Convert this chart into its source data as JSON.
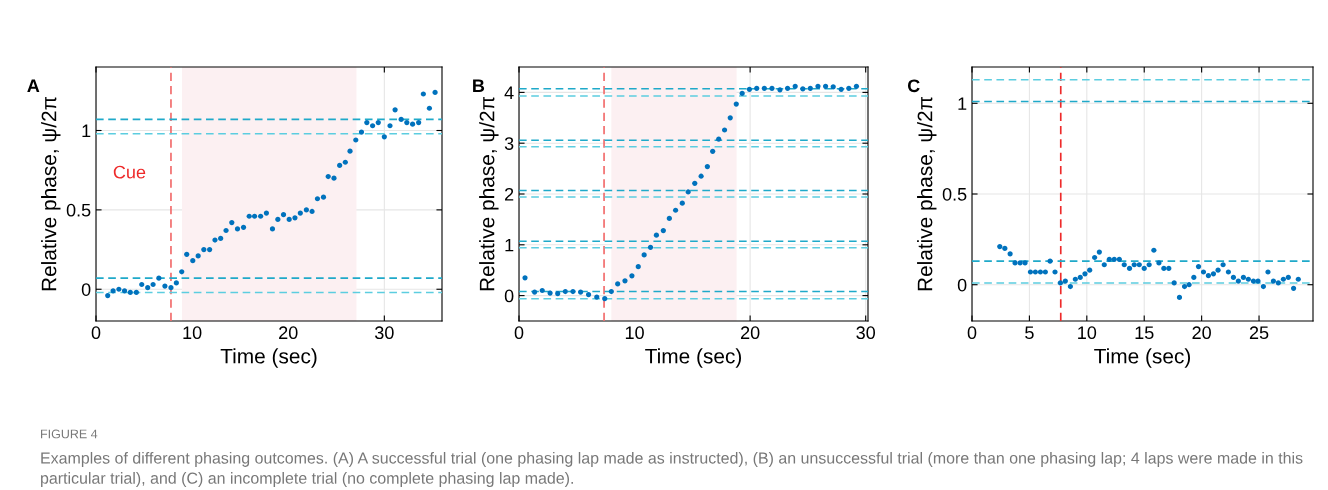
{
  "chart_data": [
    {
      "type": "scatter",
      "title": "A",
      "xlabel": "Time (sec)",
      "ylabel": "Relative phase, ψ/2π",
      "xlim": [
        0,
        36
      ],
      "xticks": [
        0,
        10,
        20,
        30
      ],
      "ylim": [
        -0.2,
        1.4
      ],
      "yticks": [
        0,
        0.5,
        1
      ],
      "grid": true,
      "marker": "circle",
      "annotations": [
        "FIGURE 4",
        "Examples of different phasing outcomes. (A) A successful trial (one phasing lap made as instructed), (B) an unsuccessful trial (more than one phasing lap; 4 laps were made in this particular trial), and (C) an incomplete trial (no complete phasing lap made)."
      ],
      "series": [
        {
          "color": "#0072bd",
          "x": [
            1.22,
            1.78,
            2.38,
            2.97,
            3.57,
            4.2,
            4.76,
            5.38,
            5.94,
            6.54,
            7.17,
            7.8,
            8.36,
            8.92,
            9.44,
            10.07,
            10.63,
            11.22,
            11.82,
            12.38,
            12.97,
            13.53,
            14.13,
            14.72,
            15.35,
            15.94,
            16.5,
            17.13,
            17.73,
            18.36,
            18.92,
            19.51,
            20.1,
            20.7,
            21.26,
            21.89,
            22.48,
            23.04,
            23.67,
            24.16,
            24.76,
            25.35,
            25.94,
            26.43,
            27.03,
            27.62,
            28.18,
            28.78,
            29.37,
            30.0,
            30.59,
            31.12,
            31.75,
            32.34,
            32.94,
            33.57,
            34.06,
            34.69,
            35.28
          ],
          "values": [
            -0.04,
            -0.01,
            0.0,
            -0.01,
            -0.02,
            -0.02,
            0.03,
            0.01,
            0.03,
            0.07,
            0.02,
            0.01,
            0.04,
            0.11,
            0.22,
            0.18,
            0.21,
            0.25,
            0.25,
            0.31,
            0.32,
            0.37,
            0.42,
            0.38,
            0.39,
            0.46,
            0.46,
            0.46,
            0.48,
            0.38,
            0.44,
            0.47,
            0.44,
            0.45,
            0.48,
            0.5,
            0.49,
            0.57,
            0.58,
            0.71,
            0.7,
            0.78,
            0.8,
            0.87,
            0.94,
            0.99,
            1.05,
            1.03,
            1.05,
            0.96,
            1.03,
            1.13,
            1.07,
            1.05,
            1.04,
            1.05,
            1.23,
            1.14,
            1.24
          ]
        }
      ],
      "ref_lines": [
        {
          "axis": "x",
          "value": 7.8,
          "label": "Cue",
          "color": "#f26b6b",
          "line_style": "dashed"
        },
        {
          "axis": "y",
          "value": 1.07,
          "color": "#1fa9c9",
          "line_style": "dashed"
        },
        {
          "axis": "y",
          "value": 0.98,
          "color": "#5ccde0",
          "line_style": "dashed"
        },
        {
          "axis": "y",
          "value": 0.07,
          "color": "#1fa9c9",
          "line_style": "dashed"
        },
        {
          "axis": "y",
          "value": -0.02,
          "color": "#5ccde0",
          "line_style": "dashed"
        }
      ],
      "bands": [
        {
          "axis": "x",
          "from": 8.95,
          "to": 27.1,
          "color": "#fcf0f2"
        }
      ]
    },
    {
      "type": "scatter",
      "title": "B",
      "xlabel": "Time (sec)",
      "ylabel": "Relative phase, ψ/2π",
      "xlim": [
        0,
        30.2
      ],
      "xticks": [
        0,
        10,
        20,
        30
      ],
      "ylim": [
        -0.5,
        4.5
      ],
      "yticks": [
        0,
        1,
        2,
        3,
        4
      ],
      "grid": true,
      "marker": "circle",
      "series": [
        {
          "color": "#0072bd",
          "x": [
            0.52,
            1.35,
            2.01,
            2.69,
            3.35,
            4.01,
            4.67,
            5.33,
            6.02,
            6.73,
            7.42,
            7.99,
            8.54,
            9.17,
            9.77,
            10.32,
            10.83,
            11.38,
            11.89,
            12.49,
            13.01,
            13.55,
            14.13,
            14.64,
            15.21,
            15.76,
            16.3,
            16.76,
            17.28,
            17.79,
            18.28,
            18.8,
            19.31,
            19.94,
            20.57,
            21.23,
            21.89,
            22.58,
            23.24,
            23.9,
            24.56,
            25.21,
            25.87,
            26.53,
            27.19,
            27.88,
            28.54,
            29.2
          ],
          "values": [
            0.35,
            0.07,
            0.1,
            0.05,
            0.04,
            0.08,
            0.08,
            0.07,
            0.02,
            -0.03,
            -0.06,
            0.08,
            0.23,
            0.29,
            0.39,
            0.57,
            0.8,
            0.95,
            1.19,
            1.28,
            1.52,
            1.68,
            1.82,
            2.04,
            2.21,
            2.35,
            2.54,
            2.84,
            3.08,
            3.26,
            3.5,
            3.77,
            3.98,
            4.06,
            4.08,
            4.08,
            4.08,
            4.05,
            4.08,
            4.12,
            4.07,
            4.08,
            4.12,
            4.12,
            4.11,
            4.06,
            4.08,
            4.12
          ]
        }
      ],
      "ref_lines": [
        {
          "axis": "x",
          "value": 7.36,
          "color": "#f26b6b",
          "line_style": "dashed"
        },
        {
          "axis": "y",
          "value": 4.07,
          "color": "#1fa9c9",
          "line_style": "dashed"
        },
        {
          "axis": "y",
          "value": 3.93,
          "color": "#5ccde0",
          "line_style": "dashed"
        },
        {
          "axis": "y",
          "value": 3.06,
          "color": "#1fa9c9",
          "line_style": "dashed"
        },
        {
          "axis": "y",
          "value": 2.93,
          "color": "#5ccde0",
          "line_style": "dashed"
        },
        {
          "axis": "y",
          "value": 2.07,
          "color": "#1fa9c9",
          "line_style": "dashed"
        },
        {
          "axis": "y",
          "value": 1.94,
          "color": "#5ccde0",
          "line_style": "dashed"
        },
        {
          "axis": "y",
          "value": 1.07,
          "color": "#1fa9c9",
          "line_style": "dashed"
        },
        {
          "axis": "y",
          "value": 0.94,
          "color": "#5ccde0",
          "line_style": "dashed"
        },
        {
          "axis": "y",
          "value": 0.08,
          "color": "#1fa9c9",
          "line_style": "dashed"
        },
        {
          "axis": "y",
          "value": -0.06,
          "color": "#5ccde0",
          "line_style": "dashed"
        }
      ],
      "bands": [
        {
          "axis": "x",
          "from": 7.99,
          "to": 18.83,
          "color": "#fcf0f2"
        }
      ]
    },
    {
      "type": "scatter",
      "title": "C",
      "xlabel": "Time (sec)",
      "ylabel": "Relative phase, ψ/2π",
      "xlim": [
        0,
        29.7
      ],
      "xticks": [
        0,
        5,
        10,
        15,
        20,
        25
      ],
      "ylim": [
        -0.2,
        1.2
      ],
      "yticks": [
        0,
        0.5,
        1
      ],
      "grid": true,
      "marker": "circle",
      "series": [
        {
          "color": "#0072bd",
          "x": [
            2.42,
            2.86,
            3.32,
            3.75,
            4.19,
            4.62,
            5.09,
            5.52,
            5.96,
            6.39,
            6.8,
            7.23,
            7.7,
            8.13,
            8.57,
            9.0,
            9.43,
            9.84,
            10.25,
            10.68,
            11.09,
            11.52,
            11.96,
            12.39,
            12.83,
            13.26,
            13.72,
            14.13,
            14.57,
            15.0,
            15.43,
            15.84,
            16.28,
            16.71,
            17.14,
            17.61,
            18.07,
            18.51,
            18.91,
            19.32,
            19.73,
            20.16,
            20.59,
            21.03,
            21.43,
            21.87,
            22.33,
            22.77,
            23.2,
            23.64,
            24.07,
            24.51,
            24.91,
            25.38,
            25.78,
            26.25,
            26.68,
            27.12,
            27.55,
            28.01,
            28.42
          ],
          "values": [
            0.21,
            0.2,
            0.17,
            0.12,
            0.12,
            0.12,
            0.07,
            0.07,
            0.07,
            0.07,
            0.13,
            0.07,
            0.01,
            0.02,
            -0.01,
            0.03,
            0.04,
            0.06,
            0.08,
            0.15,
            0.18,
            0.11,
            0.14,
            0.14,
            0.14,
            0.11,
            0.09,
            0.11,
            0.11,
            0.09,
            0.11,
            0.19,
            0.12,
            0.09,
            0.09,
            0.01,
            -0.07,
            -0.01,
            0.0,
            0.04,
            0.1,
            0.07,
            0.05,
            0.06,
            0.08,
            0.11,
            0.07,
            0.04,
            0.02,
            0.04,
            0.03,
            0.02,
            0.02,
            -0.01,
            0.07,
            0.02,
            0.01,
            0.03,
            0.04,
            -0.02,
            0.03
          ]
        }
      ],
      "ref_lines": [
        {
          "axis": "x",
          "value": 7.73,
          "color": "#ee2a2a",
          "line_style": "dashed"
        },
        {
          "axis": "y",
          "value": 1.13,
          "color": "#5ccde0",
          "line_style": "dashed"
        },
        {
          "axis": "y",
          "value": 1.01,
          "color": "#1fa9c9",
          "line_style": "dashed"
        },
        {
          "axis": "y",
          "value": 0.13,
          "color": "#1fa9c9",
          "line_style": "dashed"
        },
        {
          "axis": "y",
          "value": 0.01,
          "color": "#5ccde0",
          "line_style": "dashed"
        }
      ]
    }
  ]
}
